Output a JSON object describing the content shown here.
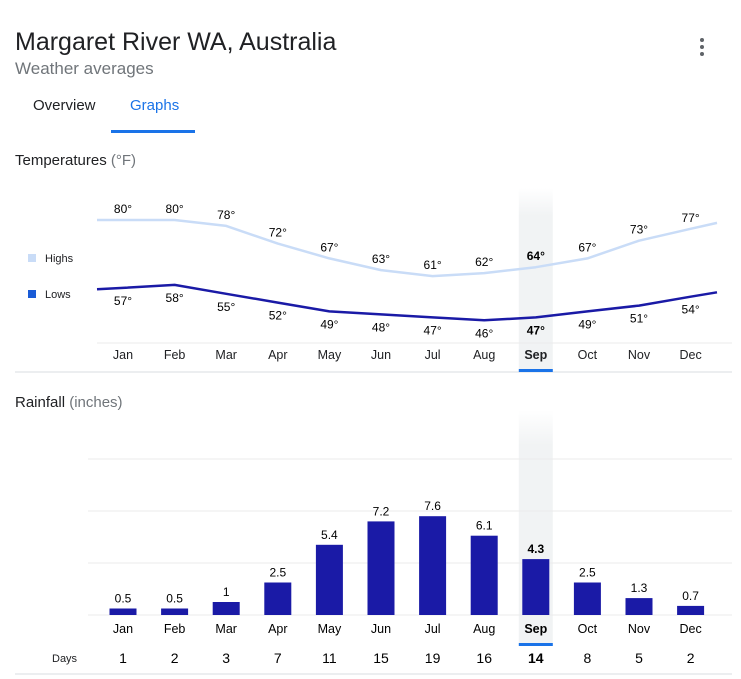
{
  "header": {
    "title": "Margaret River WA, Australia",
    "subtitle": "Weather averages",
    "menu_icon": "more-vert-icon"
  },
  "tabs": [
    {
      "label": "Overview",
      "active": false
    },
    {
      "label": "Graphs",
      "active": true
    }
  ],
  "temperature": {
    "title": "Temperatures",
    "unit": "(°F)"
  },
  "rainfall": {
    "title": "Rainfall",
    "unit": "(inches)",
    "days_label": "Days"
  },
  "colors": {
    "highs": "#c9dcf7",
    "lows": "#1a1aa6",
    "bar": "#1a1aa6",
    "accent": "#1a73e8"
  },
  "chart_data": [
    {
      "type": "line",
      "title": "Temperatures (°F)",
      "categories": [
        "Jan",
        "Feb",
        "Mar",
        "Apr",
        "May",
        "Jun",
        "Jul",
        "Aug",
        "Sep",
        "Oct",
        "Nov",
        "Dec"
      ],
      "legend": [
        "Highs",
        "Lows"
      ],
      "selected": "Sep",
      "series": [
        {
          "name": "Highs",
          "values": [
            80,
            80,
            78,
            72,
            67,
            63,
            61,
            62,
            64,
            67,
            73,
            77
          ]
        },
        {
          "name": "Lows",
          "values": [
            57,
            58,
            55,
            52,
            49,
            48,
            47,
            46,
            47,
            49,
            51,
            54
          ]
        }
      ]
    },
    {
      "type": "bar",
      "title": "Rainfall (inches)",
      "categories": [
        "Jan",
        "Feb",
        "Mar",
        "Apr",
        "May",
        "Jun",
        "Jul",
        "Aug",
        "Sep",
        "Oct",
        "Nov",
        "Dec"
      ],
      "selected": "Sep",
      "values": [
        0.5,
        0.5,
        1,
        2.5,
        5.4,
        7.2,
        7.6,
        6.1,
        4.3,
        2.5,
        1.3,
        0.7
      ],
      "value_labels": [
        "0.5",
        "0.5",
        "1",
        "2.5",
        "5.4",
        "7.2",
        "7.6",
        "6.1",
        "4.3",
        "2.5",
        "1.3",
        "0.7"
      ],
      "days": [
        1,
        2,
        3,
        7,
        11,
        15,
        19,
        16,
        14,
        8,
        5,
        2
      ],
      "ylim": [
        0,
        12
      ]
    }
  ]
}
